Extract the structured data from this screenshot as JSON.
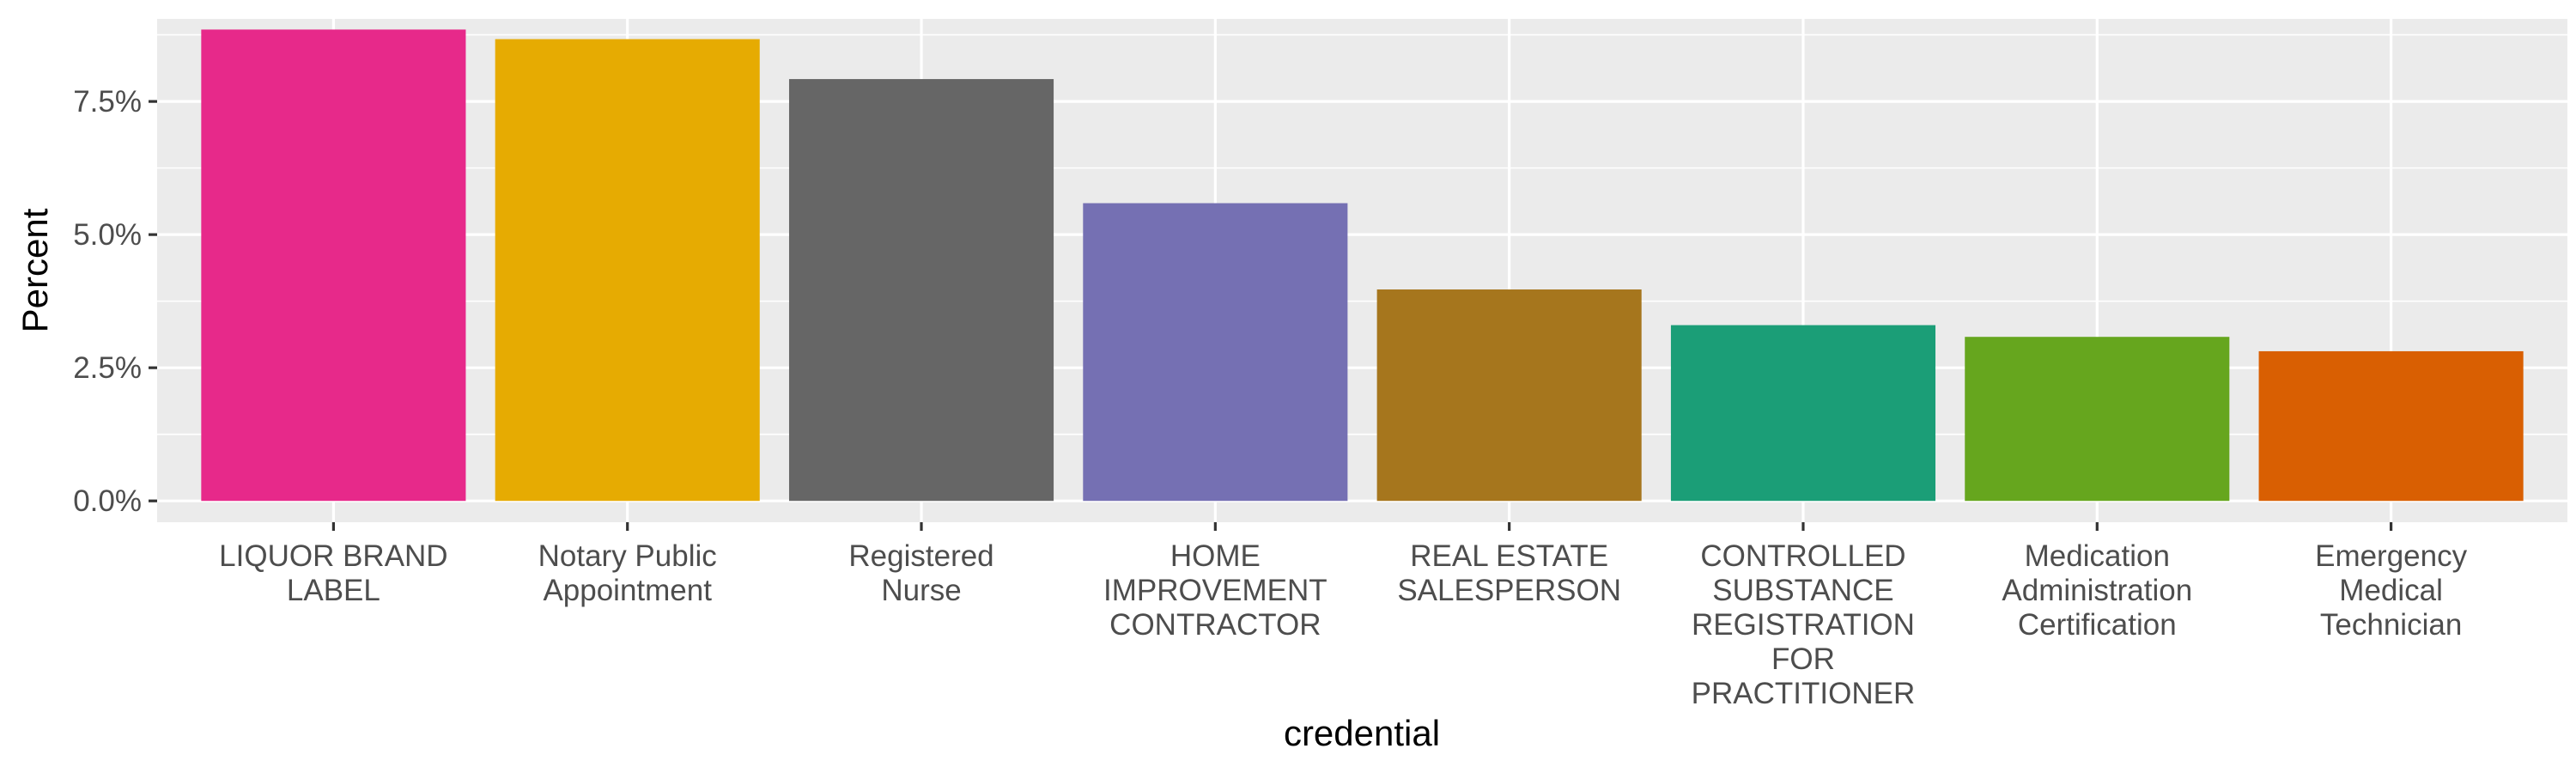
{
  "chart_data": {
    "type": "bar",
    "xlabel": "credential",
    "ylabel": "Percent",
    "ylim": [
      -0.004,
      0.0905
    ],
    "y_ticks": [
      0,
      0.025,
      0.05,
      0.075
    ],
    "y_tick_labels": [
      "0.0%",
      "2.5%",
      "5.0%",
      "7.5%"
    ],
    "grid": true,
    "legend": "none",
    "categories": [
      "LIQUOR BRAND LABEL",
      "Notary Public Appointment",
      "Registered Nurse",
      "HOME IMPROVEMENT CONTRACTOR",
      "REAL ESTATE SALESPERSON",
      "CONTROLLED SUBSTANCE REGISTRATION FOR PRACTITIONER",
      "Medication Administration Certification",
      "Emergency Medical Technician"
    ],
    "category_label_lines": [
      [
        "LIQUOR BRAND",
        "LABEL"
      ],
      [
        "Notary Public",
        "Appointment"
      ],
      [
        "Registered",
        "Nurse"
      ],
      [
        "HOME",
        "IMPROVEMENT",
        "CONTRACTOR"
      ],
      [
        "REAL ESTATE",
        "SALESPERSON"
      ],
      [
        "CONTROLLED",
        "SUBSTANCE",
        "REGISTRATION",
        "FOR",
        "PRACTITIONER"
      ],
      [
        "Medication",
        "Administration",
        "Certification"
      ],
      [
        "Emergency",
        "Medical",
        "Technician"
      ]
    ],
    "values": [
      0.0885,
      0.0867,
      0.0792,
      0.0559,
      0.0397,
      0.033,
      0.0308,
      0.0281
    ],
    "colors": [
      "#e7298a",
      "#e6ab02",
      "#666666",
      "#7570b3",
      "#a6761d",
      "#1b9e77",
      "#66a61e",
      "#d95f02"
    ],
    "panel_background": "#ebebeb"
  }
}
